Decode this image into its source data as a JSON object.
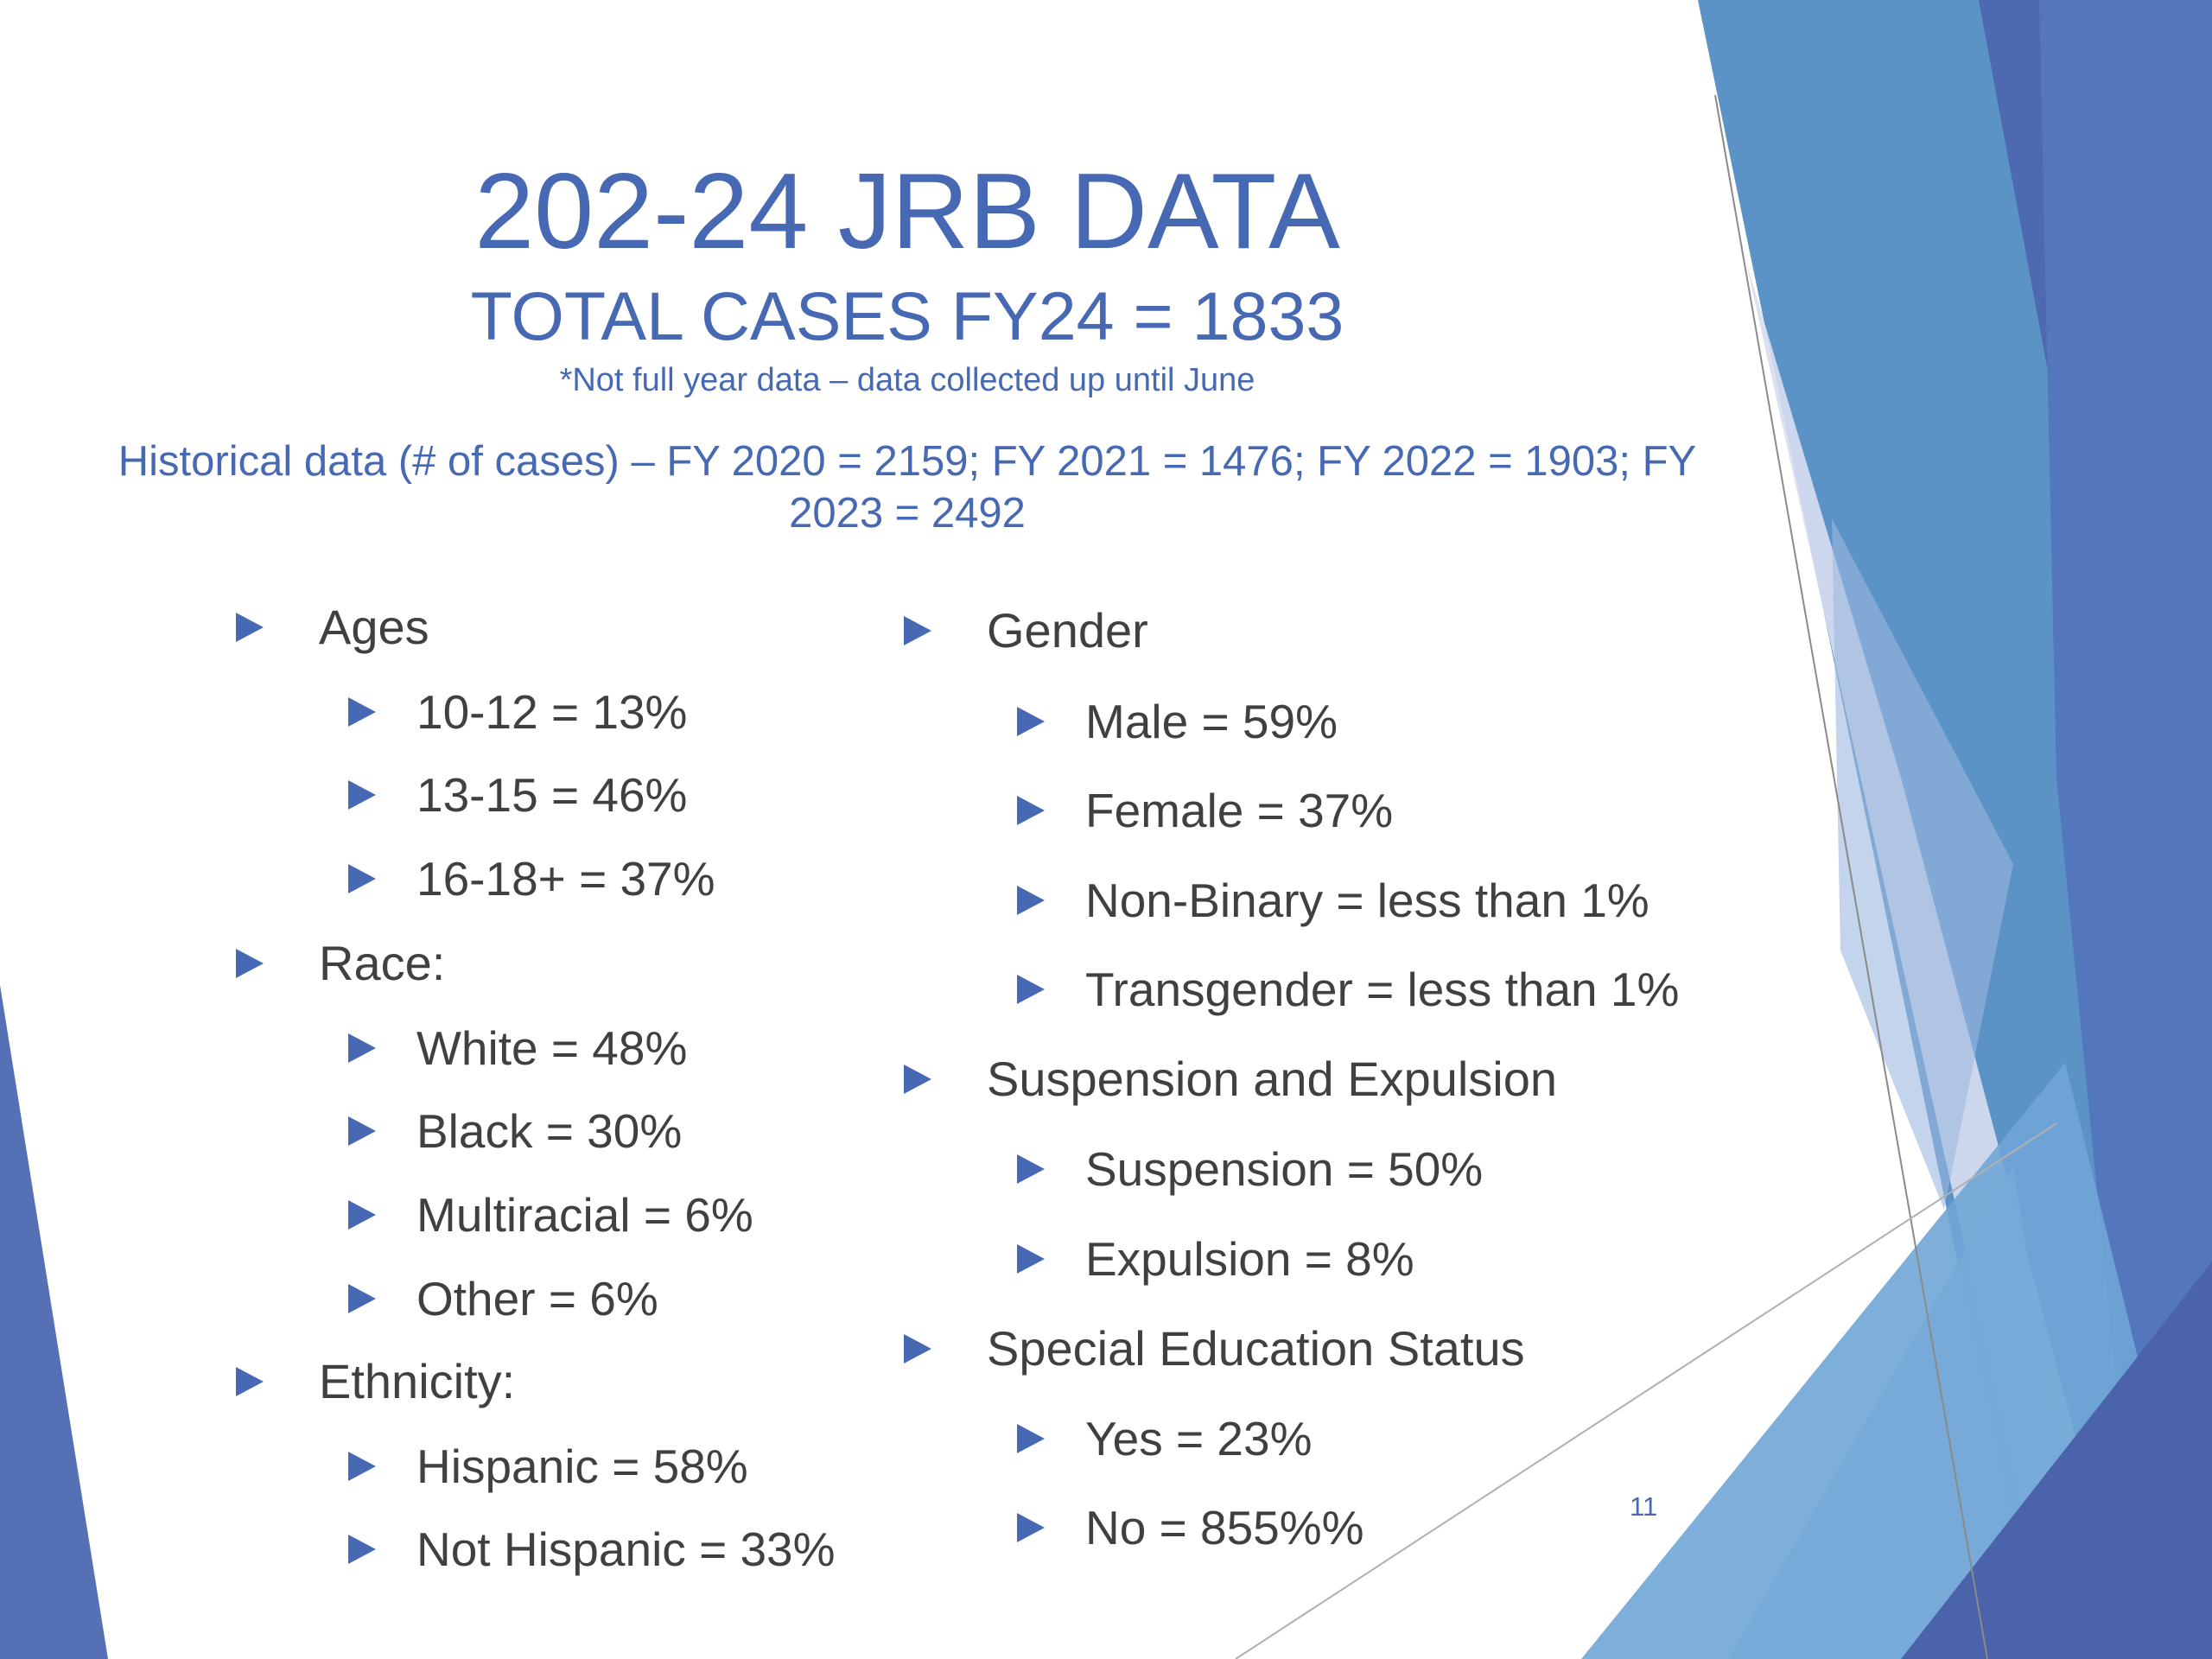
{
  "title": "202-24 JRB DATA",
  "subtitle": "TOTAL CASES FY24 = 1833",
  "note": "*Not full year data – data collected up until June",
  "history": "Historical data (# of cases) – FY 2020 = 2159; FY 2021 = 1476; FY 2022 = 1903; FY 2023 = 2492",
  "left_list": {
    "ages": {
      "heading": "Ages",
      "items": [
        "10-12 = 13%",
        "13-15 = 46%",
        "16-18+ = 37%"
      ]
    },
    "race": {
      "heading": "Race:",
      "items": [
        "White = 48%",
        "Black = 30%",
        "Multiracial = 6%",
        "Other = 6%"
      ]
    },
    "ethnicity": {
      "heading": "Ethnicity:",
      "items": [
        "Hispanic = 58%",
        "Not Hispanic = 33%"
      ]
    }
  },
  "right_list": {
    "gender": {
      "heading": "Gender",
      "items": [
        "Male = 59%",
        "Female = 37%",
        "Non-Binary = less than 1%",
        "Transgender = less than 1%"
      ]
    },
    "suspension": {
      "heading": "Suspension and Expulsion",
      "items": [
        "Suspension = 50%",
        "Expulsion = 8%"
      ]
    },
    "special_ed": {
      "heading": "Special Education Status",
      "items": [
        "Yes = 23%",
        "No = 855%%"
      ]
    }
  },
  "page_number": "11",
  "colors": {
    "accent": "#4769B4",
    "body_text": "#404040",
    "deco_dark": "#4A66AE",
    "deco_mid": "#5A8FC4",
    "deco_light": "#C9D3EA"
  }
}
